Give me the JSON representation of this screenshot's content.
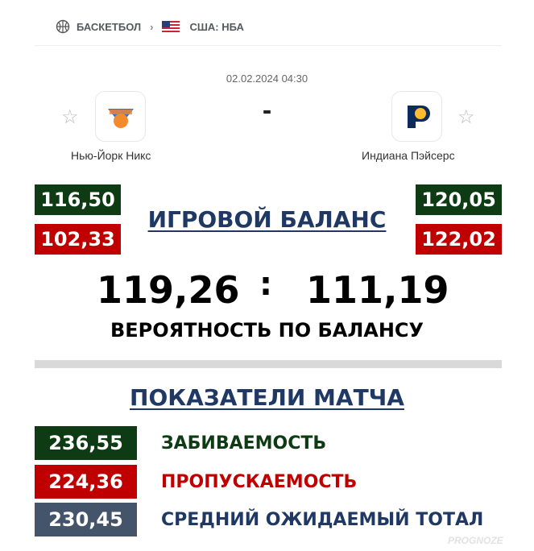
{
  "breadcrumb": {
    "sport": "БАСКЕТБОЛ",
    "league": "США: НБА",
    "sport_icon": "basketball-icon",
    "flag_icon": "us-flag-icon"
  },
  "match": {
    "datetime": "02.02.2024 04:30",
    "score": "-",
    "home": {
      "name": "Нью-Йорк Никс",
      "logo": "knicks-logo"
    },
    "away": {
      "name": "Индиана Пэйсерс",
      "logo": "pacers-logo"
    }
  },
  "balance": {
    "title": "ИГРОВОЙ БАЛАНС",
    "home_green": "116,50",
    "home_red": "102,33",
    "away_green": "120,05",
    "away_red": "122,02",
    "home_score": "119,26",
    "separator": ":",
    "away_score": "111,19",
    "subtitle": "ВЕРОЯТНОСТЬ ПО БАЛАНСУ"
  },
  "stats": {
    "title": "ПОКАЗАТЕЛИ МАТЧА",
    "items": [
      {
        "value": "236,55",
        "label": "ЗАБИВАЕМОСТЬ",
        "color": "#0f3b14"
      },
      {
        "value": "224,36",
        "label": "ПРОПУСКАЕМОСТЬ",
        "color": "#c00000"
      },
      {
        "value": "230,45",
        "label": "СРЕДНИЙ ОЖИДАЕМЫЙ ТОТАЛ",
        "color": "#44546a"
      }
    ]
  },
  "watermark": "PROGNOZE",
  "colors": {
    "green": "#0f3b14",
    "red": "#c00000",
    "slate": "#44546a",
    "navy": "#1f3864"
  }
}
